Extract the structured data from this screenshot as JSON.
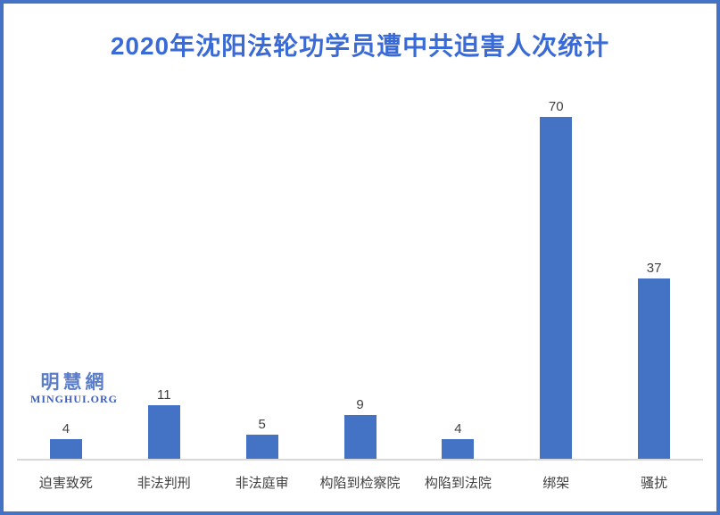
{
  "title": {
    "text": "2020年沈阳法轮功学员遭中共迫害人次统计",
    "color": "#3A6AD6"
  },
  "watermark": {
    "main": "明慧網",
    "sub": "MINGHUI.ORG",
    "main_color": "#5B7EC9",
    "sub_color": "#3D5EBE"
  },
  "frame": {
    "border_color": "#4472C4"
  },
  "chart_data": {
    "type": "bar",
    "title": "2020年沈阳法轮功学员遭中共迫害人次统计",
    "categories": [
      "迫害致死",
      "非法判刑",
      "非法庭审",
      "构陷到检察院",
      "构陷到法院",
      "绑架",
      "骚扰"
    ],
    "values": [
      4,
      11,
      5,
      9,
      4,
      70,
      37
    ],
    "xlabel": "",
    "ylabel": "",
    "ylim": [
      0,
      80
    ],
    "grid": false,
    "legend": false,
    "data_labels": true,
    "bar_color": "#4472C4",
    "value_label_color": "#404040",
    "category_label_color": "#404040",
    "axis_line_color": "#D9D9D9"
  }
}
